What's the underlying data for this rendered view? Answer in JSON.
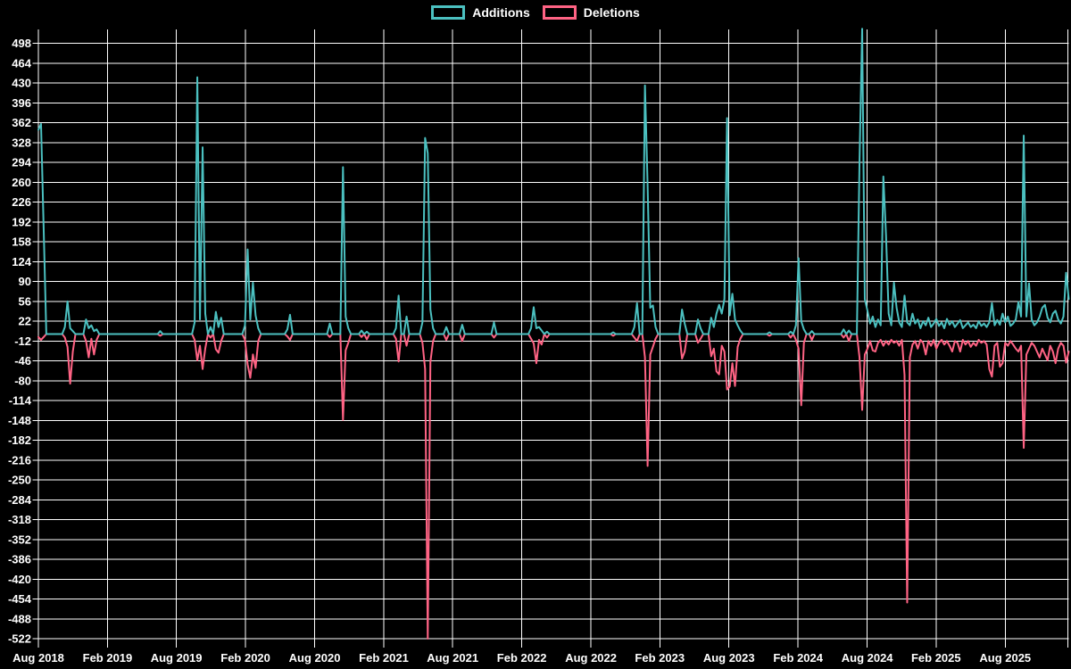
{
  "legend": {
    "items": [
      {
        "label": "Additions",
        "color": "#4BC0C0"
      },
      {
        "label": "Deletions",
        "color": "#FF6384"
      }
    ]
  },
  "chart_data": {
    "type": "line",
    "title": "",
    "xlabel": "",
    "ylabel": "",
    "background": "#000000",
    "grid_color": "#ffffff",
    "text_color": "#ffffff",
    "grid": true,
    "legend_position": "top",
    "ylim": [
      -522,
      498
    ],
    "y_ticks": [
      498,
      464,
      430,
      396,
      362,
      328,
      294,
      260,
      226,
      192,
      158,
      124,
      90,
      56,
      22,
      -12,
      -46,
      -80,
      -114,
      -148,
      -182,
      -216,
      -250,
      -284,
      -318,
      -352,
      -386,
      -420,
      -454,
      -488,
      -522
    ],
    "x_tick_labels": [
      "Aug 2018",
      "Feb 2019",
      "Aug 2019",
      "Feb 2020",
      "Aug 2020",
      "Feb 2021",
      "Aug 2021",
      "Feb 2022",
      "Aug 2022",
      "Feb 2023",
      "Aug 2023",
      "Feb 2024",
      "Aug 2024",
      "Feb 2025",
      "Aug 2025"
    ],
    "x_ticks": [
      {
        "label": "Aug 2018",
        "week": 0
      },
      {
        "label": "Feb 2019",
        "week": 26.1
      },
      {
        "label": "Aug 2019",
        "week": 52.1
      },
      {
        "label": "Feb 2020",
        "week": 78.2
      },
      {
        "label": "Aug 2020",
        "week": 104.3
      },
      {
        "label": "Feb 2021",
        "week": 130.4
      },
      {
        "label": "Aug 2021",
        "week": 156.4
      },
      {
        "label": "Feb 2022",
        "week": 182.5
      },
      {
        "label": "Aug 2022",
        "week": 208.6
      },
      {
        "label": "Feb 2023",
        "week": 234.6
      },
      {
        "label": "Aug 2023",
        "week": 260.7
      },
      {
        "label": "Feb 2024",
        "week": 286.8
      },
      {
        "label": "Aug 2024",
        "week": 312.9
      },
      {
        "label": "Feb 2025",
        "week": 338.9
      },
      {
        "label": "Aug 2025",
        "week": 365
      }
    ],
    "weeks_total": 390,
    "dense_start": 313,
    "series": [
      {
        "name": "Deletions",
        "color": "#FF6384",
        "baseline": 0,
        "events": {
          "0": -5,
          "1": -10,
          "2": -5,
          "10": -6,
          "11": -22,
          "12": -85,
          "13": -30,
          "18": -12,
          "19": -40,
          "20": -8,
          "21": -35,
          "22": -10,
          "46": -3,
          "59": -10,
          "60": -45,
          "61": -20,
          "62": -60,
          "63": -25,
          "65": -6,
          "67": -26,
          "68": -32,
          "69": -12,
          "78": -10,
          "79": -52,
          "80": -75,
          "81": -35,
          "82": -58,
          "83": -12,
          "94": -4,
          "95": -10,
          "110": -5,
          "115": -147,
          "116": -28,
          "117": -15,
          "122": -5,
          "124": -9,
          "135": -8,
          "136": -47,
          "139": -20,
          "145": -15,
          "146": -60,
          "147": -522,
          "148": -48,
          "149": -12,
          "154": -10,
          "160": -12,
          "172": -6,
          "186": -8,
          "187": -16,
          "188": -50,
          "189": -10,
          "190": -18,
          "192": -6,
          "217": -3,
          "225": -6,
          "226": -12,
          "229": -40,
          "230": -226,
          "231": -35,
          "232": -22,
          "233": -8,
          "243": -42,
          "244": -30,
          "249": -15,
          "250": -8,
          "254": -38,
          "255": -25,
          "256": -64,
          "257": -69,
          "258": -20,
          "259": -30,
          "260": -95,
          "261": -90,
          "262": -50,
          "263": -89,
          "264": -22,
          "265": -8,
          "276": -3,
          "284": -6,
          "286": -10,
          "287": -25,
          "288": -122,
          "289": -15,
          "292": -10,
          "304": -6,
          "306": -12,
          "310": -40,
          "311": -130,
          "312": -35
        },
        "dense": [
          -25,
          -12,
          -28,
          -30,
          -15,
          -10,
          -20,
          -12,
          -18,
          -10,
          -15,
          -12,
          -20,
          -10,
          -70,
          -460,
          -40,
          -18,
          -12,
          -25,
          -10,
          -15,
          -35,
          -12,
          -20,
          -10,
          -25,
          -15,
          -10,
          -18,
          -12,
          -20,
          -30,
          -12,
          -15,
          -30,
          -10,
          -18,
          -12,
          -22,
          -15,
          -20,
          -10,
          -15,
          -12,
          -18,
          -60,
          -73,
          -20,
          -15,
          -56,
          -50,
          -15,
          -20,
          -12,
          -18,
          -25,
          -30,
          -20,
          -195,
          -35,
          -25,
          -15,
          -20,
          -30,
          -40,
          -25,
          -35,
          -45,
          -20,
          -30,
          -50,
          -25,
          -15,
          -20,
          -49,
          -30
        ]
      },
      {
        "name": "Additions",
        "color": "#4BC0C0",
        "baseline": 0,
        "events": {
          "0": 350,
          "1": 360,
          "2": 180,
          "10": 12,
          "11": 56,
          "12": 10,
          "13": 5,
          "18": 25,
          "19": 10,
          "20": 15,
          "21": 5,
          "22": 8,
          "46": 5,
          "59": 20,
          "60": 440,
          "61": 25,
          "62": 320,
          "63": 35,
          "65": 12,
          "67": 38,
          "68": 12,
          "69": 28,
          "78": 15,
          "79": 145,
          "80": 25,
          "81": 88,
          "82": 32,
          "83": 10,
          "94": 8,
          "95": 33,
          "110": 18,
          "115": 286,
          "116": 30,
          "117": 10,
          "122": 6,
          "124": 4,
          "135": 10,
          "136": 66,
          "139": 30,
          "145": 20,
          "146": 336,
          "147": 310,
          "148": 42,
          "149": 10,
          "154": 12,
          "160": 16,
          "172": 20,
          "186": 10,
          "187": 46,
          "188": 10,
          "189": 12,
          "190": 6,
          "192": 4,
          "217": 3,
          "225": 12,
          "226": 53,
          "229": 426,
          "230": 255,
          "231": 45,
          "232": 49,
          "233": 12,
          "243": 42,
          "244": 18,
          "249": 25,
          "250": 10,
          "254": 28,
          "255": 12,
          "256": 35,
          "257": 50,
          "258": 35,
          "259": 60,
          "260": 370,
          "261": 32,
          "262": 69,
          "263": 25,
          "264": 15,
          "265": 6,
          "276": 3,
          "284": 4,
          "286": 15,
          "287": 130,
          "288": 22,
          "289": 8,
          "292": 5,
          "304": 8,
          "306": 6,
          "310": 295,
          "311": 523,
          "312": 60
        },
        "dense": [
          40,
          18,
          30,
          12,
          25,
          15,
          270,
          170,
          35,
          15,
          88,
          45,
          20,
          12,
          66,
          20,
          15,
          35,
          18,
          25,
          10,
          22,
          15,
          28,
          12,
          18,
          26,
          14,
          20,
          10,
          26,
          16,
          22,
          12,
          18,
          24,
          10,
          15,
          20,
          12,
          16,
          10,
          22,
          14,
          18,
          12,
          20,
          53,
          15,
          24,
          16,
          35,
          20,
          30,
          14,
          18,
          25,
          55,
          30,
          340,
          30,
          87,
          25,
          15,
          20,
          30,
          45,
          50,
          28,
          20,
          35,
          40,
          25,
          18,
          30,
          105,
          60
        ]
      }
    ]
  }
}
